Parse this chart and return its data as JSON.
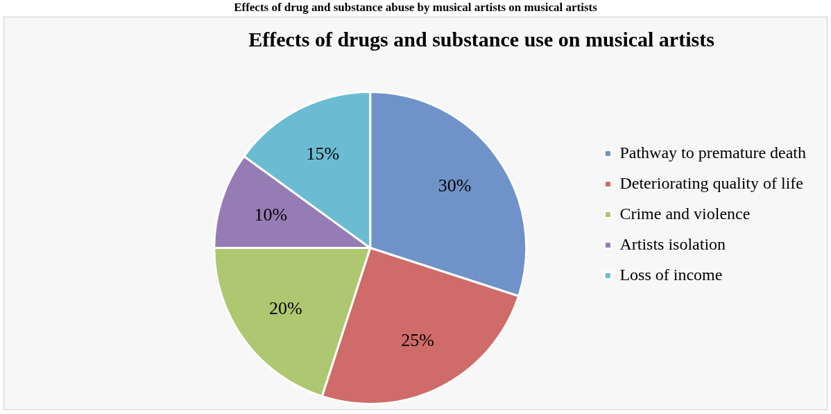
{
  "chart_data": {
    "type": "pie",
    "title": "Effects of drugs and substance use on musical artists",
    "annotations": [
      "Effects of drug and substance abuse by musical artists on musical artists"
    ],
    "categories": [
      "Pathway to premature death",
      "Deteriorating quality of life",
      "Crime and violence",
      "Artists isolation",
      "Loss of income"
    ],
    "values": [
      30,
      25,
      20,
      10,
      15
    ],
    "colors": [
      "#6f93c8",
      "#cf6b68",
      "#aec771",
      "#967cb5",
      "#6bbcd2"
    ],
    "value_labels": [
      "30%",
      "25%",
      "20%",
      "10%",
      "15%"
    ],
    "legend": "right"
  }
}
